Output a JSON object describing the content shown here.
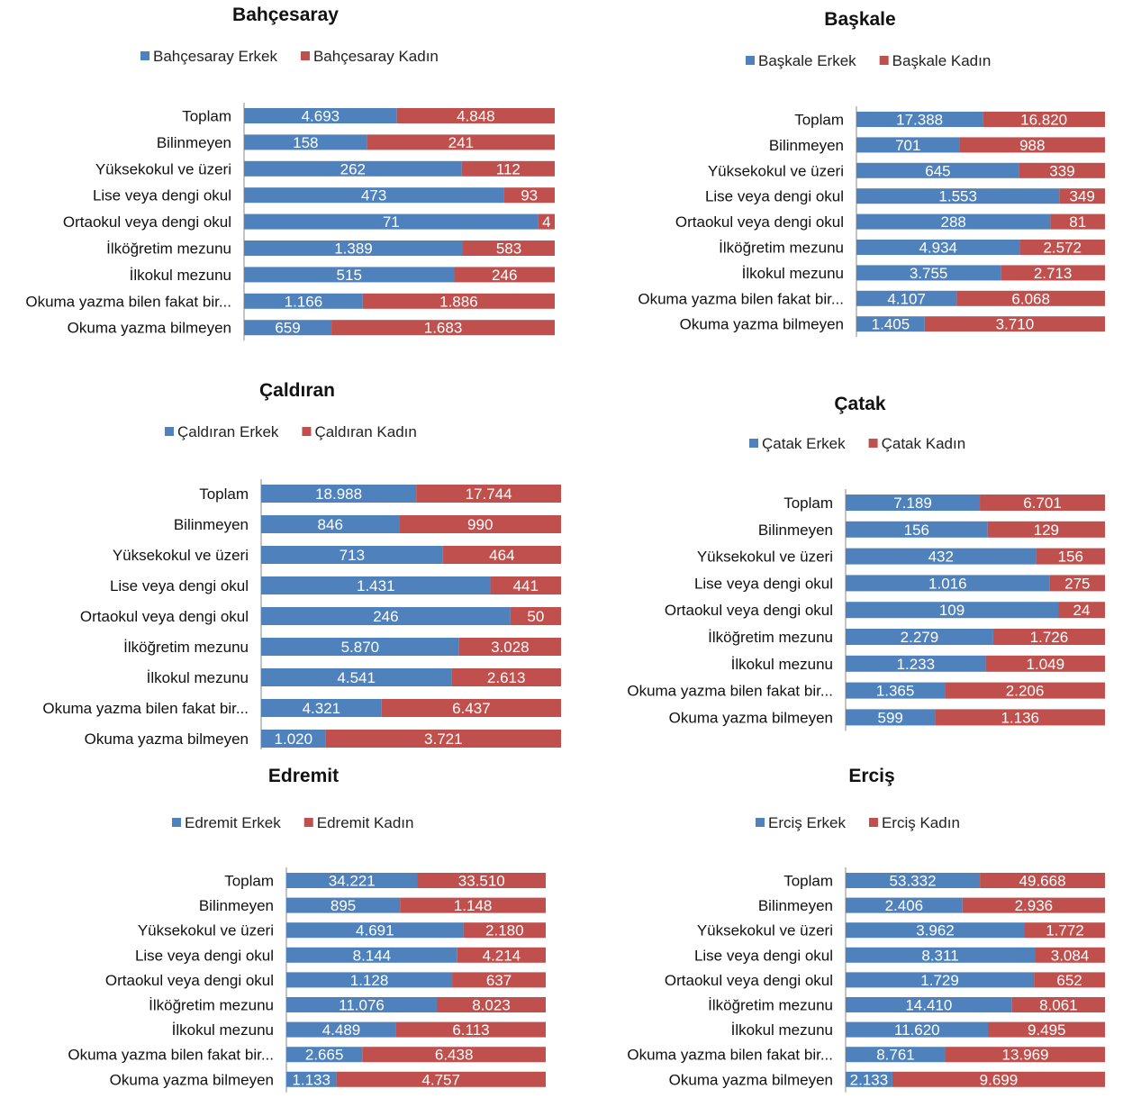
{
  "colors": {
    "erkek": "#4f81bd",
    "kadin": "#c0504d"
  },
  "chart_data": [
    {
      "type": "bar",
      "stacked": "percent",
      "orientation": "horizontal",
      "title": "Bahçesaray",
      "legend_position": "top",
      "categories": [
        "Toplam",
        "Bilinmeyen",
        "Yüksekokul ve üzeri",
        "Lise veya dengi okul",
        "Ortaokul veya dengi okul",
        "İlköğretim mezunu",
        "İlkokul mezunu",
        "Okuma yazma bilen fakat bir...",
        "Okuma yazma bilmeyen"
      ],
      "series": [
        {
          "name": "Bahçesaray Erkek",
          "values": [
            4693,
            158,
            262,
            473,
            71,
            1389,
            515,
            1166,
            659
          ],
          "labels": [
            "4.693",
            "158",
            "262",
            "473",
            "71",
            "1.389",
            "515",
            "1.166",
            "659"
          ]
        },
        {
          "name": "Bahçesaray Kadın",
          "values": [
            4848,
            241,
            112,
            93,
            4,
            583,
            246,
            1886,
            1683
          ],
          "labels": [
            "4.848",
            "241",
            "112",
            "93",
            "4",
            "583",
            "246",
            "1.886",
            "1.683"
          ]
        }
      ]
    },
    {
      "type": "bar",
      "stacked": "percent",
      "orientation": "horizontal",
      "title": "Başkale",
      "legend_position": "top",
      "categories": [
        "Toplam",
        "Bilinmeyen",
        "Yüksekokul ve üzeri",
        "Lise veya dengi okul",
        "Ortaokul veya dengi okul",
        "İlköğretim mezunu",
        "İlkokul mezunu",
        "Okuma yazma bilen fakat bir...",
        "Okuma yazma bilmeyen"
      ],
      "series": [
        {
          "name": "Başkale Erkek",
          "values": [
            17388,
            701,
            645,
            1553,
            288,
            4934,
            3755,
            4107,
            1405
          ],
          "labels": [
            "17.388",
            "701",
            "645",
            "1.553",
            "288",
            "4.934",
            "3.755",
            "4.107",
            "1.405"
          ]
        },
        {
          "name": "Başkale Kadın",
          "values": [
            16820,
            988,
            339,
            349,
            81,
            2572,
            2713,
            6068,
            3710
          ],
          "labels": [
            "16.820",
            "988",
            "339",
            "349",
            "81",
            "2.572",
            "2.713",
            "6.068",
            "3.710"
          ]
        }
      ]
    },
    {
      "type": "bar",
      "stacked": "percent",
      "orientation": "horizontal",
      "title": "Çaldıran",
      "legend_position": "top",
      "categories": [
        "Toplam",
        "Bilinmeyen",
        "Yüksekokul ve üzeri",
        "Lise veya dengi okul",
        "Ortaokul veya dengi okul",
        "İlköğretim mezunu",
        "İlkokul mezunu",
        "Okuma yazma bilen fakat bir...",
        "Okuma yazma bilmeyen"
      ],
      "series": [
        {
          "name": "Çaldıran Erkek",
          "values": [
            18988,
            846,
            713,
            1431,
            246,
            5870,
            4541,
            4321,
            1020
          ],
          "labels": [
            "18.988",
            "846",
            "713",
            "1.431",
            "246",
            "5.870",
            "4.541",
            "4.321",
            "1.020"
          ]
        },
        {
          "name": "Çaldıran Kadın",
          "values": [
            17744,
            990,
            464,
            441,
            50,
            3028,
            2613,
            6437,
            3721
          ],
          "labels": [
            "17.744",
            "990",
            "464",
            "441",
            "50",
            "3.028",
            "2.613",
            "6.437",
            "3.721"
          ]
        }
      ]
    },
    {
      "type": "bar",
      "stacked": "percent",
      "orientation": "horizontal",
      "title": "Çatak",
      "legend_position": "top",
      "categories": [
        "Toplam",
        "Bilinmeyen",
        "Yüksekokul ve üzeri",
        "Lise veya dengi okul",
        "Ortaokul veya dengi okul",
        "İlköğretim mezunu",
        "İlkokul mezunu",
        "Okuma yazma bilen fakat bir...",
        "Okuma yazma bilmeyen"
      ],
      "series": [
        {
          "name": "Çatak Erkek",
          "values": [
            7189,
            156,
            432,
            1016,
            109,
            2279,
            1233,
            1365,
            599
          ],
          "labels": [
            "7.189",
            "156",
            "432",
            "1.016",
            "109",
            "2.279",
            "1.233",
            "1.365",
            "599"
          ]
        },
        {
          "name": "Çatak Kadın",
          "values": [
            6701,
            129,
            156,
            275,
            24,
            1726,
            1049,
            2206,
            1136
          ],
          "labels": [
            "6.701",
            "129",
            "156",
            "275",
            "24",
            "1.726",
            "1.049",
            "2.206",
            "1.136"
          ]
        }
      ]
    },
    {
      "type": "bar",
      "stacked": "percent",
      "orientation": "horizontal",
      "title": "Edremit",
      "legend_position": "top",
      "categories": [
        "Toplam",
        "Bilinmeyen",
        "Yüksekokul ve üzeri",
        "Lise veya dengi okul",
        "Ortaokul veya dengi okul",
        "İlköğretim mezunu",
        "İlkokul mezunu",
        "Okuma yazma bilen fakat bir...",
        "Okuma yazma bilmeyen"
      ],
      "series": [
        {
          "name": "Edremit Erkek",
          "values": [
            34221,
            895,
            4691,
            8144,
            1128,
            11076,
            4489,
            2665,
            1133
          ],
          "labels": [
            "34.221",
            "895",
            "4.691",
            "8.144",
            "1.128",
            "11.076",
            "4.489",
            "2.665",
            "1.133"
          ]
        },
        {
          "name": "Edremit Kadın",
          "values": [
            33510,
            1148,
            2180,
            4214,
            637,
            8023,
            6113,
            6438,
            4757
          ],
          "labels": [
            "33.510",
            "1.148",
            "2.180",
            "4.214",
            "637",
            "8.023",
            "6.113",
            "6.438",
            "4.757"
          ]
        }
      ]
    },
    {
      "type": "bar",
      "stacked": "percent",
      "orientation": "horizontal",
      "title": "Erciş",
      "legend_position": "top",
      "categories": [
        "Toplam",
        "Bilinmeyen",
        "Yüksekokul ve üzeri",
        "Lise veya dengi okul",
        "Ortaokul veya dengi okul",
        "İlköğretim mezunu",
        "İlkokul mezunu",
        "Okuma yazma bilen fakat bir...",
        "Okuma yazma bilmeyen"
      ],
      "series": [
        {
          "name": "Erciş Erkek",
          "values": [
            53332,
            2406,
            3962,
            8311,
            1729,
            14410,
            11620,
            8761,
            2133
          ],
          "labels": [
            "53.332",
            "2.406",
            "3.962",
            "8.311",
            "1.729",
            "14.410",
            "11.620",
            "8.761",
            "2.133"
          ]
        },
        {
          "name": "Erciş Kadın",
          "values": [
            49668,
            2936,
            1772,
            3084,
            652,
            8061,
            9495,
            13969,
            9699
          ],
          "labels": [
            "49.668",
            "2.936",
            "1.772",
            "3.084",
            "652",
            "8.061",
            "9.495",
            "13.969",
            "9.699"
          ]
        }
      ]
    }
  ]
}
